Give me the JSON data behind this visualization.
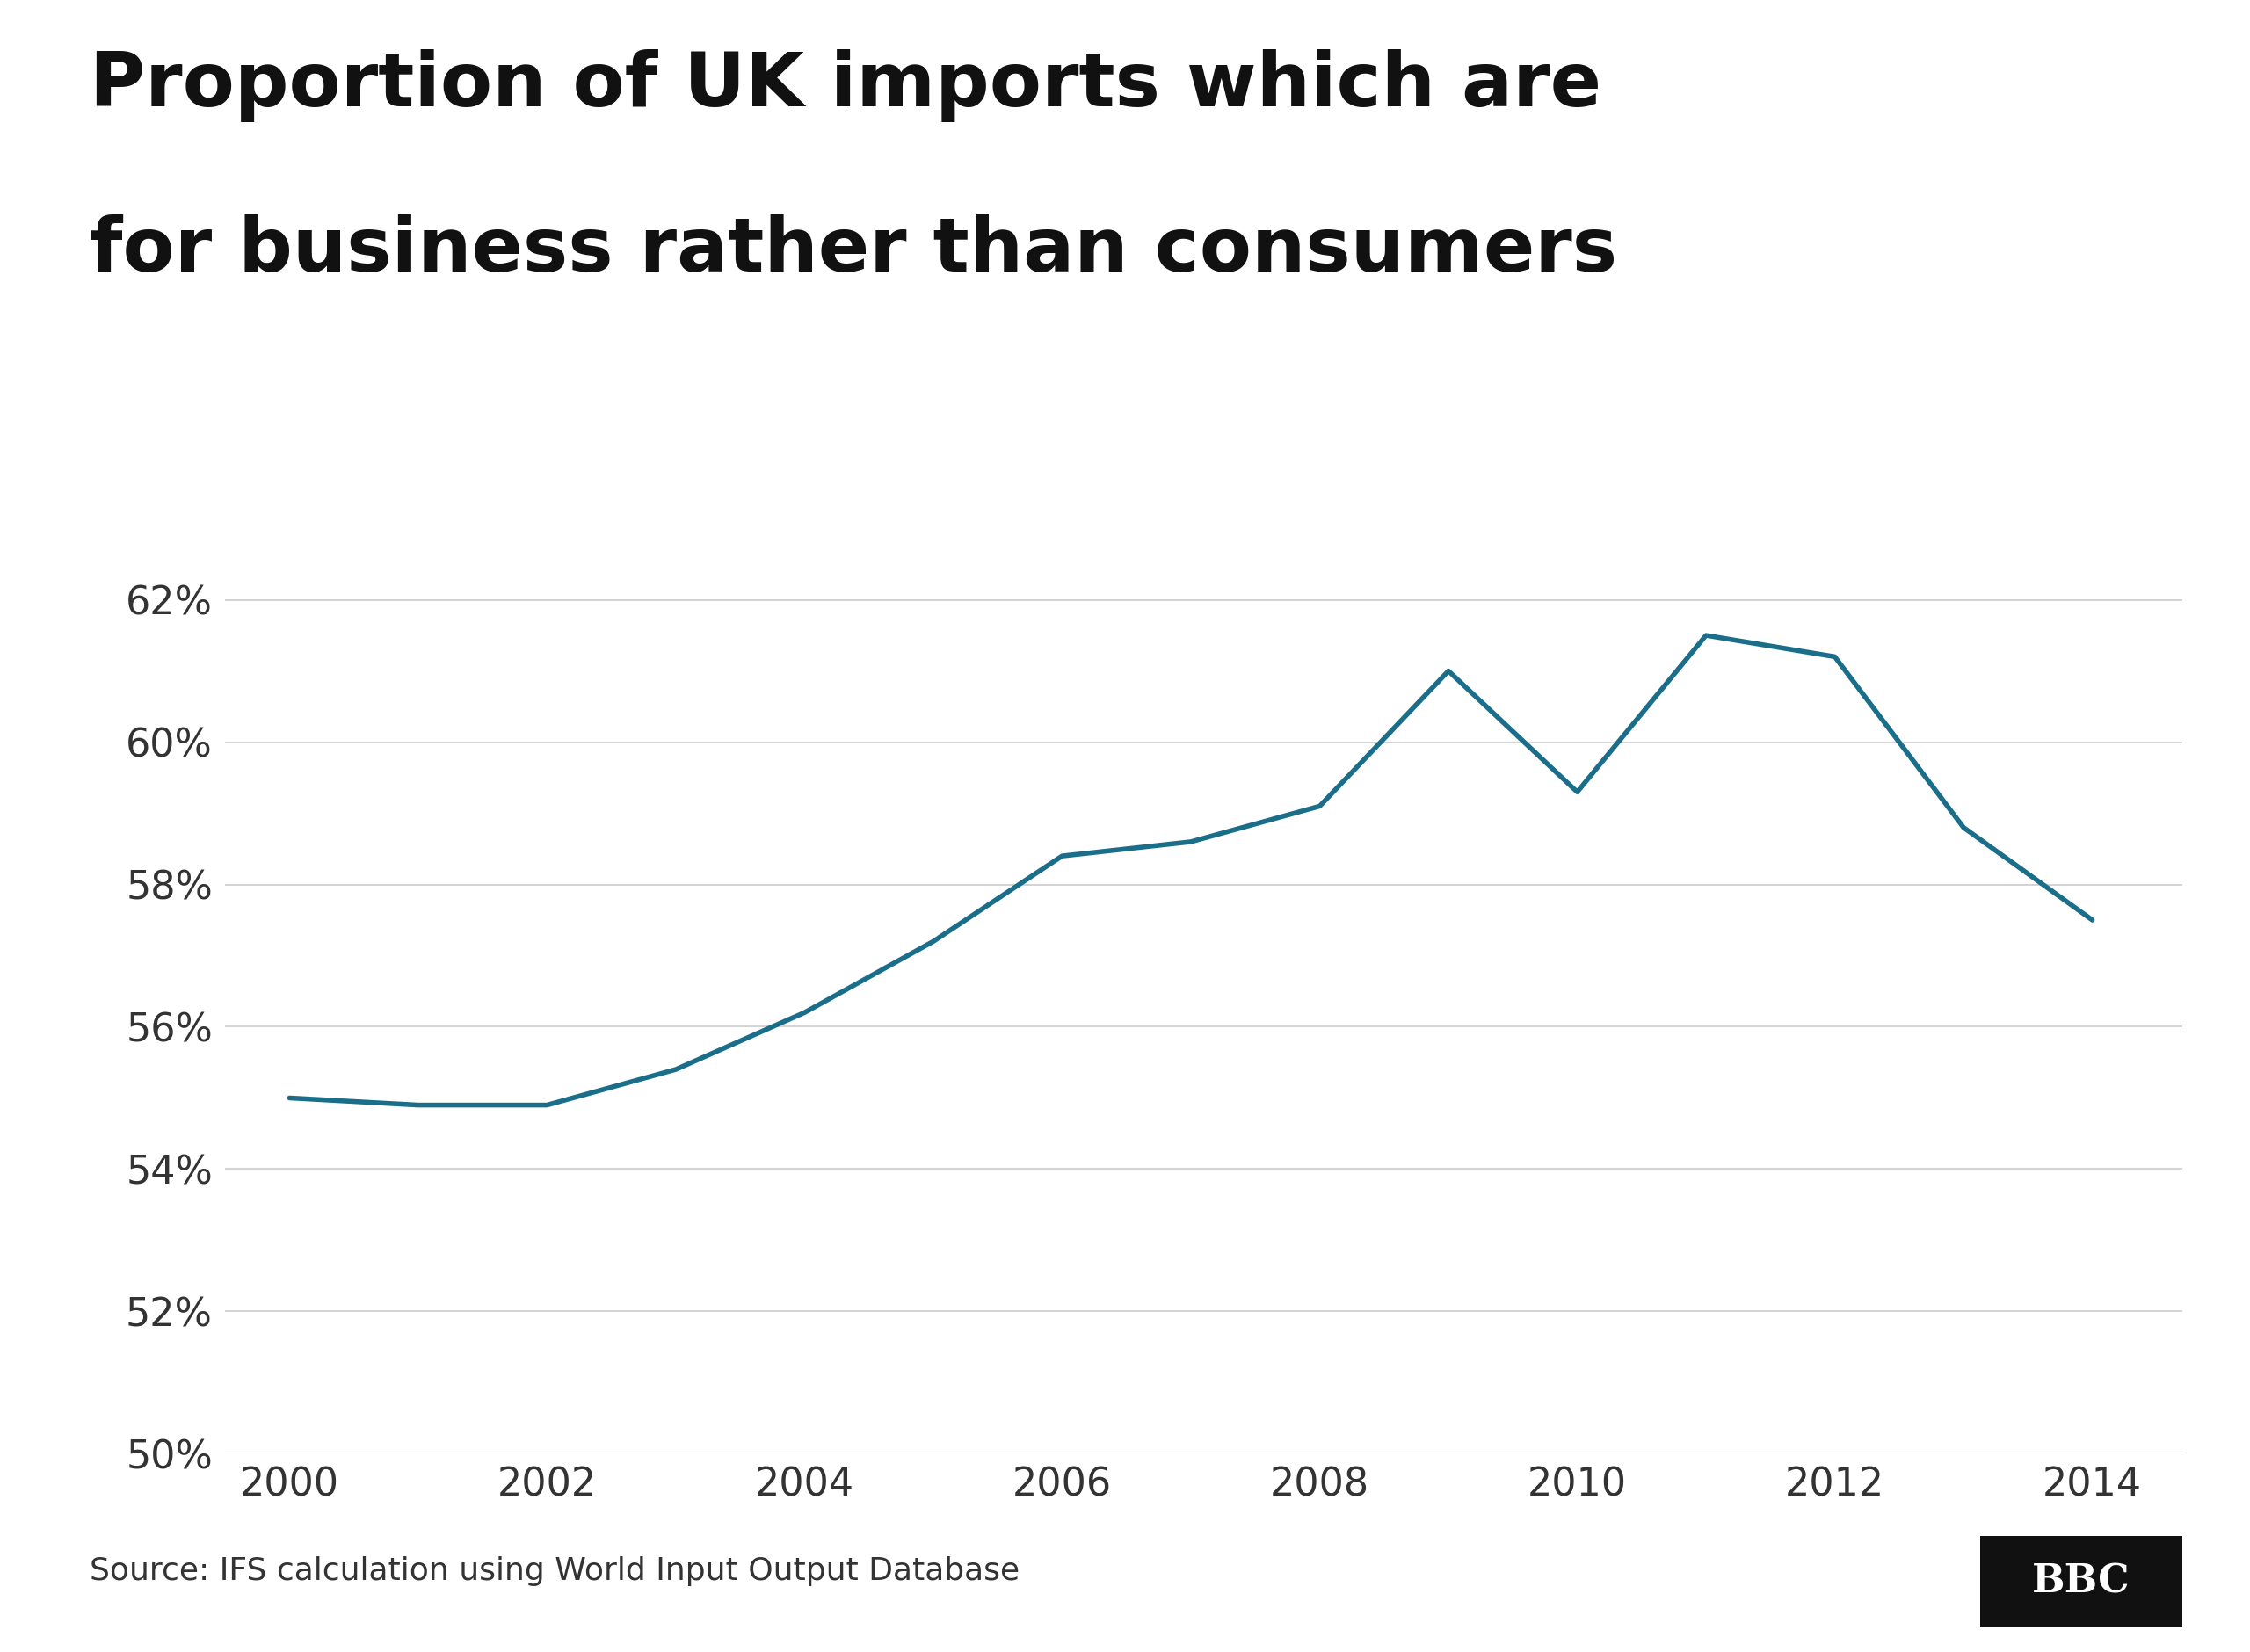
{
  "title_line1": "Proportion of UK imports which are",
  "title_line2": "for business rather than consumers",
  "years": [
    2000,
    2001,
    2002,
    2003,
    2004,
    2005,
    2006,
    2007,
    2008,
    2009,
    2010,
    2011,
    2012,
    2013,
    2014
  ],
  "values": [
    55.0,
    54.9,
    54.9,
    55.4,
    56.2,
    57.2,
    58.4,
    58.6,
    59.1,
    61.0,
    59.3,
    61.5,
    61.2,
    58.8,
    57.5
  ],
  "line_color": "#1a6e8a",
  "line_width": 4.0,
  "background_color": "#ffffff",
  "grid_color": "#cccccc",
  "ylim": [
    50,
    63
  ],
  "yticks": [
    50,
    52,
    54,
    56,
    58,
    60,
    62
  ],
  "xticks": [
    2000,
    2002,
    2004,
    2006,
    2008,
    2010,
    2012,
    2014
  ],
  "xlim_left": 1999.5,
  "xlim_right": 2014.7,
  "source_text": "Source: IFS calculation using World Input Output Database",
  "bbc_text": "BBC",
  "title_fontsize": 62,
  "tick_fontsize": 32,
  "source_fontsize": 26
}
